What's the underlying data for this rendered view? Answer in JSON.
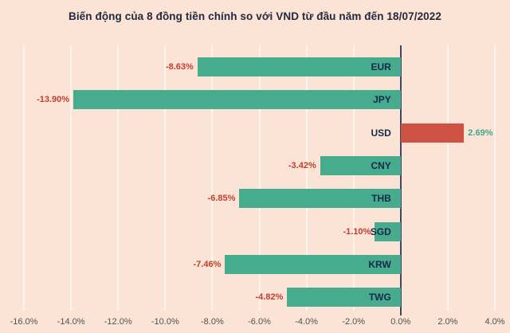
{
  "chart_data": {
    "type": "bar",
    "orientation": "horizontal",
    "title": "Biến động của 8 đồng tiền chính so với VND từ đầu năm đến 18/07/2022",
    "categories": [
      "EUR",
      "JPY",
      "USD",
      "CNY",
      "THB",
      "SGD",
      "KRW",
      "TWG"
    ],
    "values": [
      -8.63,
      -13.9,
      2.69,
      -3.42,
      -6.85,
      -1.1,
      -7.46,
      -4.82
    ],
    "value_labels": [
      "-8.63%",
      "-13.90%",
      "2.69%",
      "-3.42%",
      "-6.85%",
      "-1.10%",
      "-7.46%",
      "-4.82%"
    ],
    "x_ticks": [
      "-16.0%",
      "-14.0%",
      "-12.0%",
      "-10.0%",
      "-8.0%",
      "-6.0%",
      "-4.0%",
      "-2.0%",
      "0.0%",
      "2.0%",
      "4.0%"
    ],
    "xlim": [
      -16,
      4
    ],
    "grid": true,
    "legend": "none",
    "colors": {
      "background": "#fbe3d5",
      "negative_bar": "#47ac8e",
      "positive_bar": "#cd5243",
      "negative_value_label": "#c43e2e",
      "positive_value_label": "#3fa98a",
      "category_label": "#17294a",
      "title": "#222a3f",
      "axis_line": "#3b4963",
      "tick_label": "#525252",
      "gridline": "rgba(255,255,255,0.6)"
    }
  }
}
